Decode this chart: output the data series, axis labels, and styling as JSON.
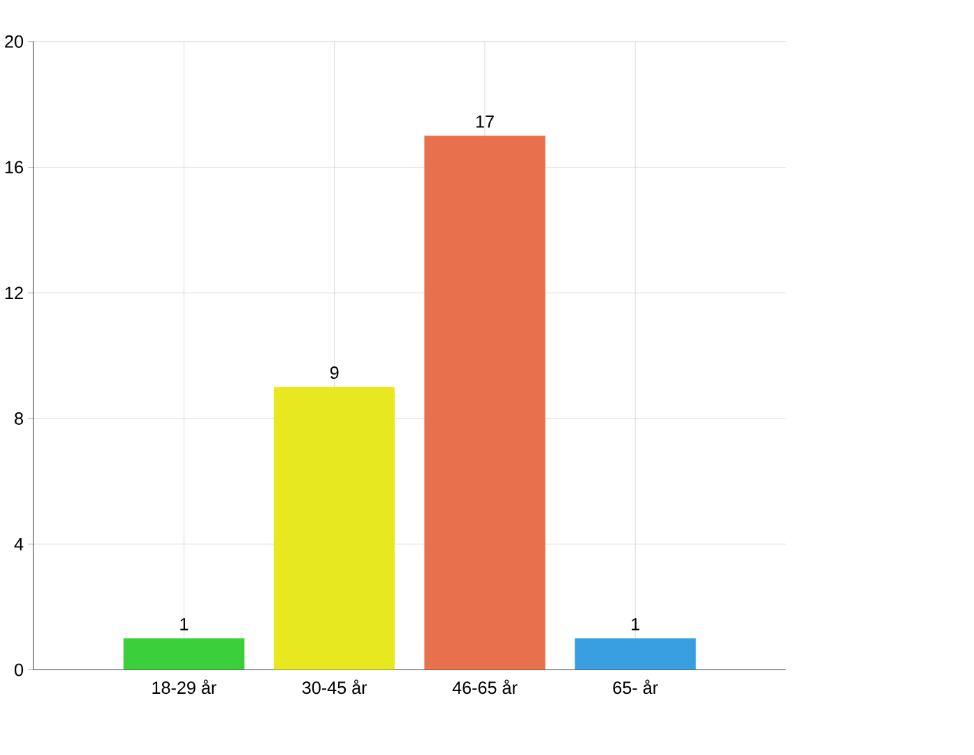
{
  "chart_data": {
    "type": "bar",
    "categories": [
      "18-29 år",
      "30-45 år",
      "46-65 år",
      "65- år"
    ],
    "values": [
      1,
      9,
      17,
      1
    ],
    "colors": [
      "#3ccf3c",
      "#e8e820",
      "#e8704c",
      "#3a9fe0"
    ],
    "ylim": [
      0,
      20
    ],
    "yticks": [
      0,
      4,
      8,
      12,
      16,
      20
    ],
    "grid": true,
    "data_labels": true
  }
}
